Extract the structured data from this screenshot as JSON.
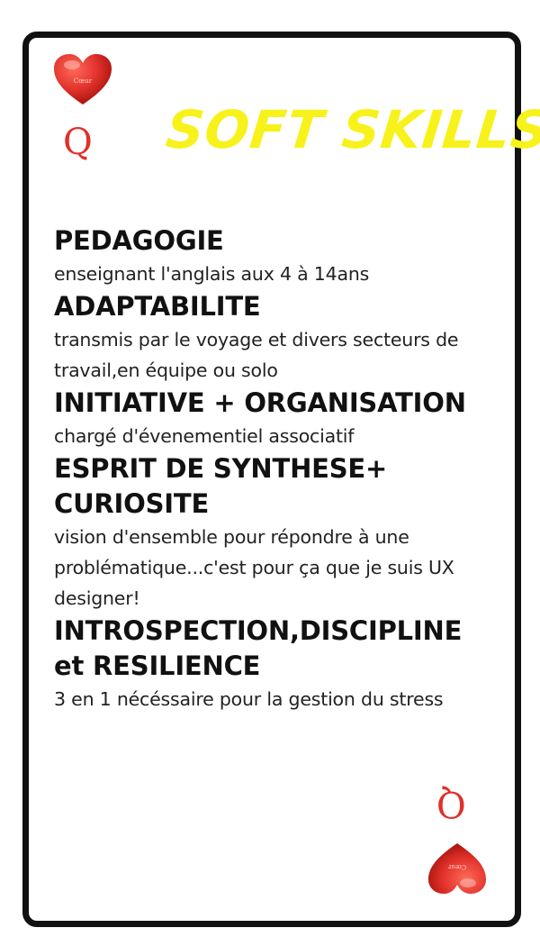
{
  "card": {
    "rank": "Q",
    "suit_icon": "heart-icon",
    "heart_text": "Cœur",
    "title": "SOFT SKILLS",
    "colors": {
      "title": "#f7f21c",
      "suit": "#e0302a",
      "border": "#111111"
    }
  },
  "skills": [
    {
      "title": "PEDAGOGIE",
      "description": "enseignant l'anglais aux 4 à 14ans"
    },
    {
      "title": "ADAPTABILITE",
      "description": "transmis par le voyage et divers secteurs de travail,en équipe ou solo"
    },
    {
      "title": "INITIATIVE + ORGANISATION",
      "description": "chargé d'évenementiel associatif"
    },
    {
      "title": "ESPRIT DE SYNTHESE+ CURIOSITE",
      "description": "vision d'ensemble pour répondre à une problématique...c'est pour ça que je suis UX designer!"
    },
    {
      "title": "INTROSPECTION,DISCIPLINE et RESILIENCE",
      "description": "3 en 1 nécéssaire pour la gestion du stress"
    }
  ]
}
